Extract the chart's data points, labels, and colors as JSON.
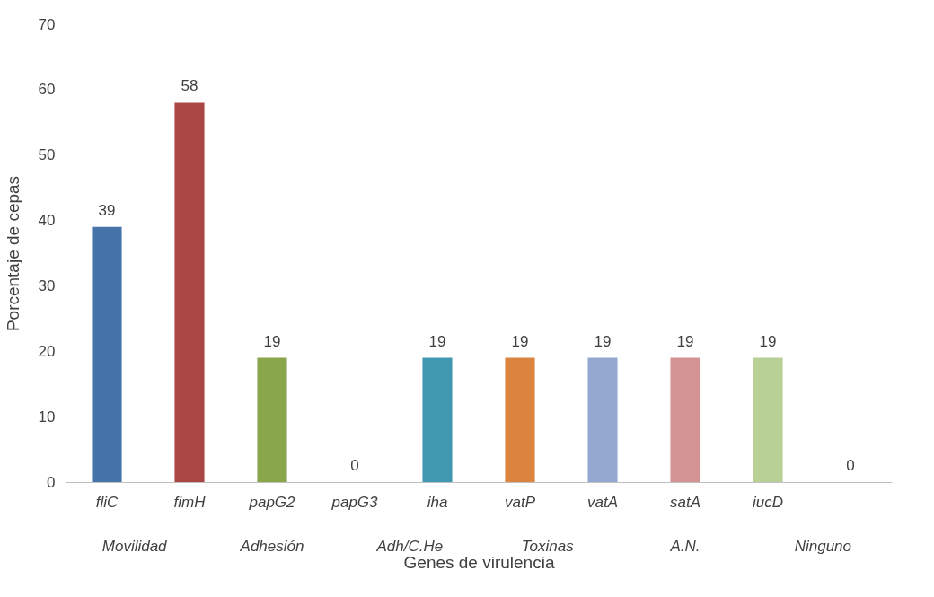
{
  "chart_data": {
    "type": "bar",
    "xlabel": "Genes de virulencia",
    "ylabel": "Porcentaje de cepas",
    "categories": [
      "fliC",
      "fimH",
      "papG2",
      "papG3",
      "iha",
      "vatP",
      "vatA",
      "satA",
      "iucD",
      null
    ],
    "values": [
      39,
      58,
      19,
      0,
      19,
      19,
      19,
      19,
      19,
      0
    ],
    "colors": [
      "#4674aa",
      "#aa4644",
      "#8aa64b",
      "#7d5fa0",
      "#4099b0",
      "#db8440",
      "#93a9d0",
      "#d49494",
      "#b8cf96",
      "#3f7fc0"
    ],
    "ylim": [
      0,
      70
    ],
    "yticks": [
      0,
      10,
      20,
      30,
      40,
      50,
      60,
      70
    ],
    "grid": false,
    "data_labels": true,
    "annotations": [
      "Movilidad",
      "Adhesión",
      "Adh/C.He",
      "Toxinas",
      "A.N.",
      "Ninguno"
    ]
  }
}
